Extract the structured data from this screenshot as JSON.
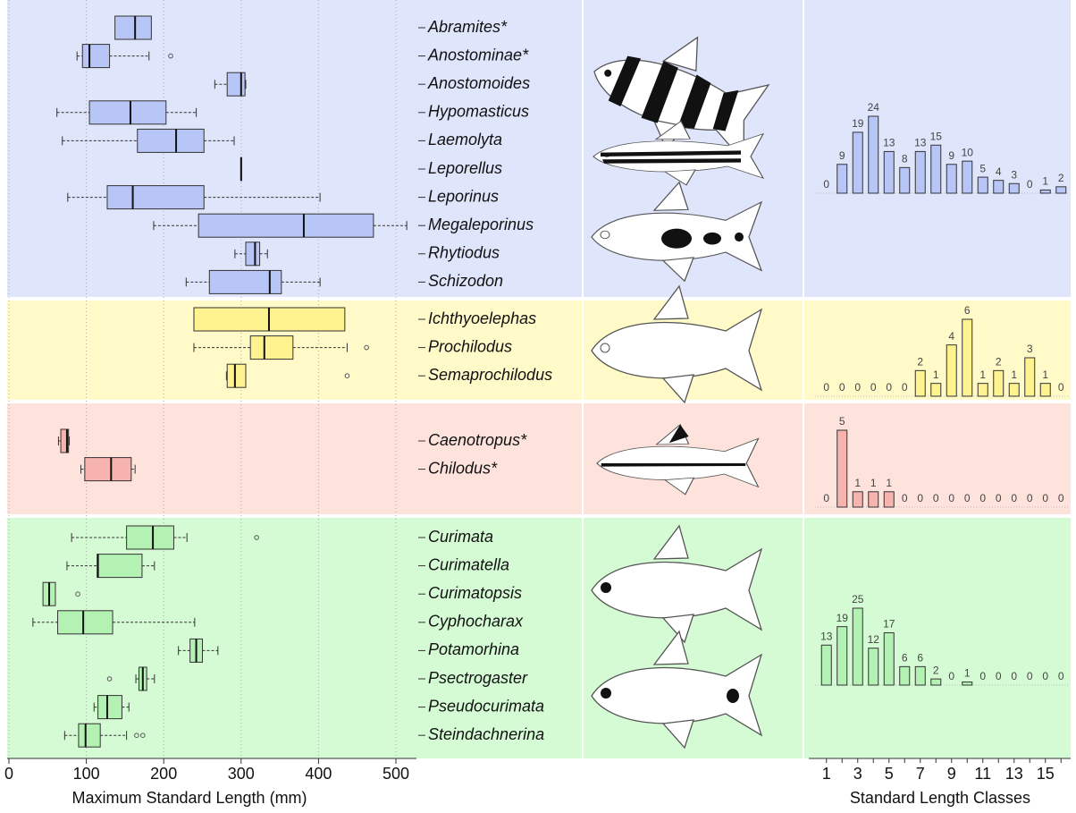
{
  "chart_data": [
    {
      "type": "boxplot",
      "xlabel": "Maximum Standard Length (mm)",
      "xlim": [
        0,
        525
      ],
      "xticks": [
        0,
        100,
        200,
        300,
        400,
        500
      ],
      "grid": true,
      "groups": [
        {
          "color": "#b7c6f7",
          "background": "#dfe5fb",
          "categories": [
            "Abramites*",
            "Anostominae*",
            "Anostomoides",
            "Hypomasticus",
            "Laemolyta",
            "Leporellus",
            "Leporinus",
            "Megaleporinus",
            "Rhytiodus",
            "Schizodon"
          ],
          "boxes": [
            {
              "min": 137,
              "q1": 137,
              "median": 163,
              "q3": 184,
              "max": 184
            },
            {
              "min": 88,
              "q1": 95,
              "median": 104,
              "q3": 130,
              "max": 181,
              "outliers": [
                209
              ]
            },
            {
              "min": 266,
              "q1": 282,
              "median": 300,
              "q3": 305,
              "max": 306
            },
            {
              "min": 62,
              "q1": 104,
              "median": 157,
              "q3": 203,
              "max": 242
            },
            {
              "min": 69,
              "q1": 166,
              "median": 216,
              "q3": 252,
              "max": 291
            },
            {
              "min": 300,
              "q1": 300,
              "median": 300,
              "q3": 300,
              "max": 300
            },
            {
              "min": 76,
              "q1": 127,
              "median": 160,
              "q3": 252,
              "max": 402
            },
            {
              "min": 187,
              "q1": 245,
              "median": 381,
              "q3": 471,
              "max": 514
            },
            {
              "min": 292,
              "q1": 306,
              "median": 318,
              "q3": 324,
              "max": 334
            },
            {
              "min": 229,
              "q1": 259,
              "median": 337,
              "q3": 352,
              "max": 402
            }
          ]
        },
        {
          "color": "#fff38f",
          "background": "#fffac8",
          "categories": [
            "Ichthyoelephas",
            "Prochilodus",
            "Semaprochilodus"
          ],
          "boxes": [
            {
              "min": 239,
              "q1": 239,
              "median": 336,
              "q3": 434,
              "max": 434
            },
            {
              "min": 239,
              "q1": 312,
              "median": 330,
              "q3": 367,
              "max": 437,
              "outliers": [
                462
              ]
            },
            {
              "min": 281,
              "q1": 282,
              "median": 292,
              "q3": 306,
              "max": 306,
              "outliers": [
                437
              ]
            }
          ]
        },
        {
          "color": "#f7b3ad",
          "background": "#fde3dc",
          "categories": [
            "Caenotropus*",
            "Chilodus*"
          ],
          "boxes": [
            {
              "min": 64,
              "q1": 67,
              "median": 75,
              "q3": 77,
              "max": 78
            },
            {
              "min": 93,
              "q1": 98,
              "median": 132,
              "q3": 158,
              "max": 163
            }
          ]
        },
        {
          "color": "#b3f2b3",
          "background": "#d5fbd5",
          "categories": [
            "Curimata",
            "Curimatella",
            "Curimatopsis",
            "Cyphocharax",
            "Potamorhina",
            "Psectrogaster",
            "Pseudocurimata",
            "Steindachnerina"
          ],
          "boxes": [
            {
              "min": 81,
              "q1": 152,
              "median": 186,
              "q3": 213,
              "max": 230,
              "outliers": [
                320
              ]
            },
            {
              "min": 75,
              "q1": 114,
              "median": 115,
              "q3": 172,
              "max": 188
            },
            {
              "min": 44,
              "q1": 44,
              "median": 52,
              "q3": 60,
              "max": 60,
              "outliers": [
                89
              ]
            },
            {
              "min": 31,
              "q1": 63,
              "median": 96,
              "q3": 134,
              "max": 240
            },
            {
              "min": 219,
              "q1": 234,
              "median": 242,
              "q3": 250,
              "max": 270
            },
            {
              "min": 164,
              "q1": 168,
              "median": 173,
              "q3": 178,
              "max": 188,
              "outliers": [
                130
              ]
            },
            {
              "min": 110,
              "q1": 115,
              "median": 127,
              "q3": 146,
              "max": 155
            },
            {
              "min": 72,
              "q1": 90,
              "median": 99,
              "q3": 118,
              "max": 152,
              "outliers": [
                165,
                173
              ]
            }
          ]
        }
      ]
    },
    {
      "type": "histogram",
      "xlabel": "Standard Length Classes",
      "xlim": [
        0.5,
        16.5
      ],
      "xticks": [
        1,
        3,
        5,
        7,
        9,
        11,
        13,
        15
      ],
      "x": [
        1,
        2,
        3,
        4,
        5,
        6,
        7,
        8,
        9,
        10,
        11,
        12,
        13,
        14,
        15,
        16
      ],
      "panels": [
        {
          "color": "#b7c6f7",
          "values": [
            0,
            9,
            19,
            24,
            13,
            8,
            13,
            15,
            9,
            10,
            5,
            4,
            3,
            0,
            1,
            2
          ]
        },
        {
          "color": "#fff38f",
          "values": [
            0,
            0,
            0,
            0,
            0,
            0,
            2,
            1,
            4,
            6,
            1,
            2,
            1,
            3,
            1,
            0
          ]
        },
        {
          "color": "#f7b3ad",
          "values": [
            0,
            5,
            1,
            1,
            1,
            0,
            0,
            0,
            0,
            0,
            0,
            0,
            0,
            0,
            0,
            0
          ]
        },
        {
          "color": "#b3f2b3",
          "values": [
            13,
            19,
            25,
            12,
            17,
            6,
            6,
            2,
            0,
            1,
            0,
            0,
            0,
            0,
            0,
            0
          ]
        }
      ]
    }
  ]
}
